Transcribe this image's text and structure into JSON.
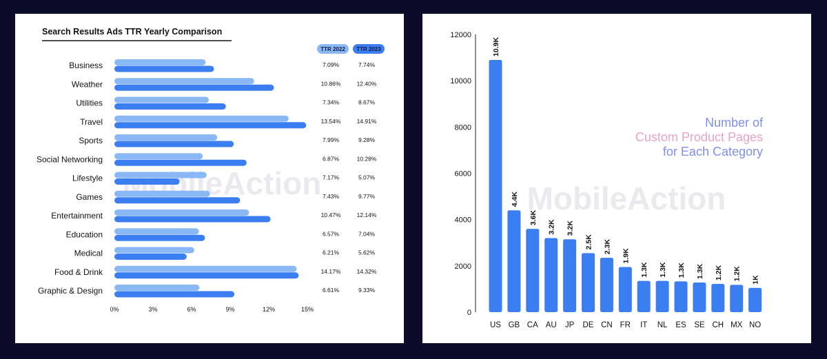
{
  "colors": {
    "background": "#0d0b2a",
    "panel": "#ffffff",
    "ttr2022": "#8ab8f5",
    "ttr2023": "#3b7ef2",
    "bar": "#3b7ef2",
    "watermark": "#e9e9ee",
    "subtitle_blue": "#7f8ef0",
    "subtitle_pink": "#e6a4c4"
  },
  "left": {
    "title": "Search Results Ads TTR Yearly Comparison",
    "legend": [
      "TTR 2022",
      "TTR 2023"
    ],
    "watermark": "MobileAction"
  },
  "right": {
    "subtitle": [
      "Number of",
      "Custom Product Pages",
      "for Each Category"
    ],
    "watermark": "MobileAction"
  },
  "chart_data": [
    {
      "type": "bar",
      "orientation": "horizontal",
      "title": "Search Results Ads TTR Yearly Comparison",
      "categories": [
        "Business",
        "Weather",
        "Utilities",
        "Travel",
        "Sports",
        "Social Networking",
        "Lifestyle",
        "Games",
        "Entertainment",
        "Education",
        "Medical",
        "Food & Drink",
        "Graphic & Design"
      ],
      "series": [
        {
          "name": "TTR 2022",
          "values": [
            7.09,
            10.86,
            7.34,
            13.54,
            7.99,
            6.87,
            7.17,
            7.43,
            10.47,
            6.57,
            6.21,
            14.17,
            6.61
          ],
          "labels": [
            "7.09%",
            "10.86%",
            "7.34%",
            "13.54%",
            "7.99%",
            "6.87%",
            "7.17%",
            "7.43%",
            "10.47%",
            "6.57%",
            "6.21%",
            "14.17%",
            "6.61%"
          ]
        },
        {
          "name": "TTR 2023",
          "values": [
            7.74,
            12.4,
            8.67,
            14.91,
            9.28,
            10.28,
            5.07,
            9.77,
            12.14,
            7.04,
            5.62,
            14.32,
            9.33
          ],
          "labels": [
            "7.74%",
            "12.40%",
            "8.67%",
            "14.91%",
            "9.28%",
            "10.28%",
            "5.07%",
            "9.77%",
            "12.14%",
            "7.04%",
            "5.62%",
            "14.32%",
            "9.33%"
          ]
        }
      ],
      "xticks": [
        "0%",
        "3%",
        "6%",
        "9%",
        "12%",
        "15%"
      ],
      "xlim": [
        0,
        15
      ],
      "legend": "top-right",
      "grid": false
    },
    {
      "type": "bar",
      "orientation": "vertical",
      "title": "Number of Custom Product Pages for Each Category",
      "categories": [
        "US",
        "GB",
        "CA",
        "AU",
        "JP",
        "DE",
        "CN",
        "FR",
        "IT",
        "NL",
        "ES",
        "SE",
        "CH",
        "MX",
        "NO"
      ],
      "values": [
        10900,
        4400,
        3600,
        3200,
        3150,
        2550,
        2350,
        1950,
        1350,
        1350,
        1330,
        1280,
        1220,
        1180,
        1050
      ],
      "data_labels": [
        "10.9K",
        "4.4K",
        "3.6K",
        "3.2K",
        "3.2K",
        "2.5K",
        "2.3K",
        "1.9K",
        "1.3K",
        "1.3K",
        "1.3K",
        "1.3K",
        "1.2K",
        "1.2K",
        "1K"
      ],
      "yticks": [
        "0",
        "2000",
        "4000",
        "6000",
        "8000",
        "10000",
        "12000"
      ],
      "ylim": [
        0,
        12000
      ],
      "grid": false
    }
  ]
}
